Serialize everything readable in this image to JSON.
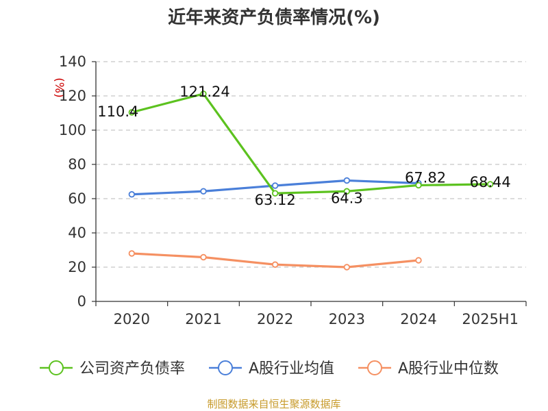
{
  "chart_data": {
    "type": "line",
    "title": "近年来资产负债率情况(%)",
    "ylabel": "(%)",
    "xlabel": "",
    "ylim": [
      0,
      140
    ],
    "yticks": [
      0,
      20,
      40,
      60,
      80,
      100,
      120,
      140
    ],
    "categories": [
      "2020",
      "2021",
      "2022",
      "2023",
      "2024",
      "2025H1"
    ],
    "grid": true,
    "legend_position": "bottom",
    "series": [
      {
        "name": "公司资产负债率",
        "color": "#5cc21f",
        "values": [
          110.4,
          121.24,
          63.12,
          64.3,
          67.82,
          68.44
        ],
        "labels": [
          "110.4",
          "121.24",
          "63.12",
          "64.3",
          "67.82",
          "68.44"
        ]
      },
      {
        "name": "A股行业均值",
        "color": "#4a7fd9",
        "values": [
          62.5,
          64.3,
          67.6,
          70.6,
          69.0,
          null
        ]
      },
      {
        "name": "A股行业中位数",
        "color": "#f59062",
        "values": [
          28.0,
          25.8,
          21.5,
          20.0,
          24.0,
          null
        ]
      }
    ],
    "source": "制图数据来自恒生聚源数据库"
  }
}
